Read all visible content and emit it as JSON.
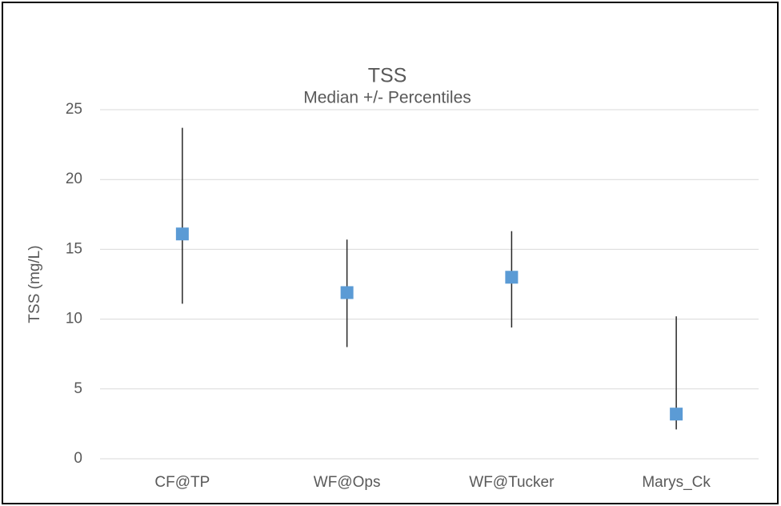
{
  "chart_data": {
    "type": "median_range",
    "title": "TSS",
    "subtitle": "Median +/- Percentiles",
    "y_label": "TSS (mg/L)",
    "categories": [
      "CF@TP",
      "WF@Ops",
      "WF@Tucker",
      "Marys_Ck"
    ],
    "values": [
      16.1,
      11.9,
      13.0,
      3.2
    ],
    "lower": [
      11.1,
      8.0,
      9.4,
      2.1
    ],
    "upper": [
      23.7,
      15.7,
      16.3,
      10.2
    ],
    "color": "#5b9bd5",
    "error_color": "#262626",
    "ylim": [
      0,
      25
    ],
    "yticks": [
      0,
      5,
      10,
      15,
      20,
      25
    ],
    "grid": true
  }
}
